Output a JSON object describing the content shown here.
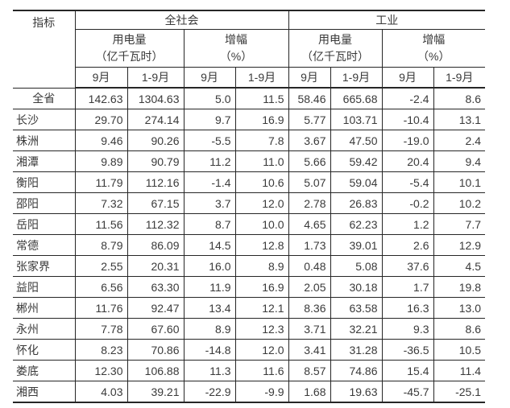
{
  "chart_data": {
    "type": "table",
    "header": {
      "indicator": "指标",
      "groups": [
        "全社会",
        "工业"
      ],
      "metrics": [
        {
          "line1": "用电量",
          "line2": "（亿千瓦时）"
        },
        {
          "line1": "增幅",
          "line2": "（%）"
        }
      ],
      "periods": [
        "9月",
        "1-9月"
      ]
    },
    "rows": [
      {
        "name": "全省",
        "values": [
          "142.63",
          "1304.63",
          "5.0",
          "11.5",
          "58.46",
          "665.68",
          "-2.4",
          "8.6"
        ]
      },
      {
        "name": "长沙",
        "values": [
          "29.70",
          "274.14",
          "9.7",
          "16.9",
          "5.77",
          "103.71",
          "-10.4",
          "13.1"
        ]
      },
      {
        "name": "株洲",
        "values": [
          "9.46",
          "90.26",
          "-5.5",
          "7.8",
          "3.67",
          "47.50",
          "-19.0",
          "2.4"
        ]
      },
      {
        "name": "湘潭",
        "values": [
          "9.89",
          "90.79",
          "11.2",
          "11.0",
          "5.66",
          "59.42",
          "20.4",
          "9.4"
        ]
      },
      {
        "name": "衡阳",
        "values": [
          "11.79",
          "112.16",
          "-1.4",
          "10.6",
          "5.07",
          "59.04",
          "-5.4",
          "10.1"
        ]
      },
      {
        "name": "邵阳",
        "values": [
          "7.32",
          "67.15",
          "3.7",
          "12.0",
          "2.78",
          "26.83",
          "-0.2",
          "10.2"
        ]
      },
      {
        "name": "岳阳",
        "values": [
          "11.56",
          "112.32",
          "8.7",
          "10.0",
          "4.65",
          "62.23",
          "1.2",
          "7.7"
        ]
      },
      {
        "name": "常德",
        "values": [
          "8.79",
          "86.09",
          "14.5",
          "12.8",
          "1.73",
          "39.01",
          "2.6",
          "12.9"
        ]
      },
      {
        "name": "张家界",
        "values": [
          "2.55",
          "20.31",
          "16.0",
          "8.9",
          "0.48",
          "5.08",
          "37.6",
          "4.5"
        ]
      },
      {
        "name": "益阳",
        "values": [
          "6.56",
          "63.30",
          "11.9",
          "16.9",
          "2.05",
          "30.18",
          "1.7",
          "19.8"
        ]
      },
      {
        "name": "郴州",
        "values": [
          "11.76",
          "92.47",
          "13.4",
          "12.1",
          "8.36",
          "63.58",
          "16.3",
          "13.0"
        ]
      },
      {
        "name": "永州",
        "values": [
          "7.78",
          "67.60",
          "8.9",
          "12.3",
          "3.71",
          "32.21",
          "9.3",
          "8.6"
        ]
      },
      {
        "name": "怀化",
        "values": [
          "8.23",
          "70.86",
          "-14.8",
          "12.0",
          "3.41",
          "31.28",
          "-36.5",
          "10.5"
        ]
      },
      {
        "name": "娄底",
        "values": [
          "12.30",
          "106.88",
          "11.3",
          "11.6",
          "8.57",
          "74.86",
          "15.4",
          "11.4"
        ]
      },
      {
        "name": "湘西",
        "values": [
          "4.03",
          "39.21",
          "-22.9",
          "-9.9",
          "1.68",
          "19.63",
          "-45.7",
          "-25.1"
        ]
      }
    ],
    "colors": {
      "text": "#3a3a3a",
      "border": "#262626",
      "background": "#ffffff"
    }
  }
}
